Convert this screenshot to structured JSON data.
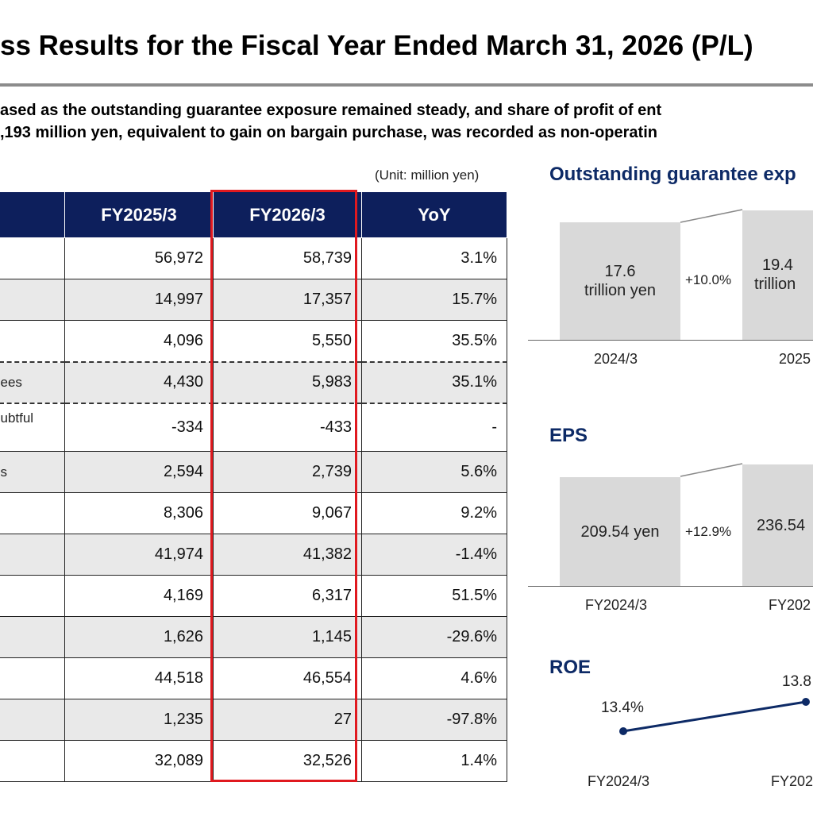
{
  "title": "ss Results for the Fiscal Year Ended March 31, 2026 (P/L)",
  "summary": {
    "line1": "ased as the outstanding guarantee exposure remained steady, and share of profit of ent",
    "line2": ",193 million yen, equivalent to gain on bargain purchase, was recorded as non-operatin"
  },
  "unit_note": "(Unit: million yen)",
  "table": {
    "headers": [
      "",
      "FY2025/3",
      "FY2026/3",
      "YoY"
    ],
    "rows": [
      {
        "label": "",
        "fy2025": "56,972",
        "fy2026": "58,739",
        "yoy": "3.1%"
      },
      {
        "label": "",
        "fy2025": "14,997",
        "fy2026": "17,357",
        "yoy": "15.7%"
      },
      {
        "label": "",
        "fy2025": "4,096",
        "fy2026": "5,550",
        "yoy": "35.5%"
      },
      {
        "label": "ees",
        "fy2025": "4,430",
        "fy2026": "5,983",
        "yoy": "35.1%"
      },
      {
        "label": "ubtful",
        "fy2025": "-334",
        "fy2026": "-433",
        "yoy": "-"
      },
      {
        "label": "s",
        "fy2025": "2,594",
        "fy2026": "2,739",
        "yoy": "5.6%"
      },
      {
        "label": "",
        "fy2025": "8,306",
        "fy2026": "9,067",
        "yoy": "9.2%"
      },
      {
        "label": "",
        "fy2025": "41,974",
        "fy2026": "41,382",
        "yoy": "-1.4%"
      },
      {
        "label": "",
        "fy2025": "4,169",
        "fy2026": "6,317",
        "yoy": "51.5%"
      },
      {
        "label": "",
        "fy2025": "1,626",
        "fy2026": "1,145",
        "yoy": "-29.6%"
      },
      {
        "label": "",
        "fy2025": "44,518",
        "fy2026": "46,554",
        "yoy": "4.6%"
      },
      {
        "label": "",
        "fy2025": "1,235",
        "fy2026": "27",
        "yoy": "-97.8%"
      },
      {
        "label": "",
        "fy2025": "32,089",
        "fy2026": "32,526",
        "yoy": "1.4%"
      }
    ]
  },
  "charts": {
    "guarantee": {
      "title": "Outstanding guarantee exp",
      "bars": [
        {
          "label": "2024/3",
          "value_line1": "17.6",
          "value_line2": "trillion yen"
        },
        {
          "label": "2025",
          "value_line1": "19.4",
          "value_line2": "trillion"
        }
      ],
      "growth": "+10.0%"
    },
    "eps": {
      "title": "EPS",
      "bars": [
        {
          "label": "FY2024/3",
          "value": "209.54  yen"
        },
        {
          "label": "FY202",
          "value": "236.54"
        }
      ],
      "growth": "+12.9%"
    },
    "roe": {
      "title": "ROE",
      "points": [
        {
          "label": "FY2024/3",
          "value": "13.4%"
        },
        {
          "label": "FY202",
          "value": "13.8"
        }
      ]
    }
  },
  "colors": {
    "header_bg": "#0d1f5c",
    "highlight": "#e0191f",
    "chart_title": "#0d2a66",
    "bar": "#d9d9d9",
    "roe_line": "#0d2a66"
  }
}
